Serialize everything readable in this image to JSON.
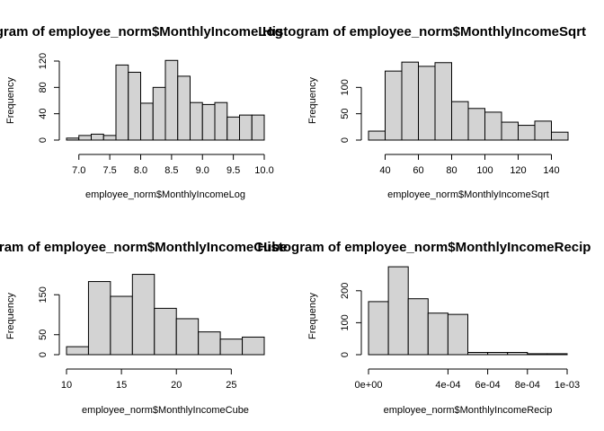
{
  "chart_data": [
    {
      "type": "bar",
      "title": "Histogram of employee_norm$MonthlyIncomeLog",
      "xlabel": "employee_norm$MonthlyIncomeLog",
      "ylabel": "Frequency",
      "bins": [
        [
          6.8,
          7.0
        ],
        [
          7.0,
          7.2
        ],
        [
          7.2,
          7.4
        ],
        [
          7.4,
          7.6
        ],
        [
          7.6,
          7.8
        ],
        [
          7.8,
          8.0
        ],
        [
          8.0,
          8.2
        ],
        [
          8.2,
          8.4
        ],
        [
          8.4,
          8.6
        ],
        [
          8.6,
          8.8
        ],
        [
          8.8,
          9.0
        ],
        [
          9.0,
          9.2
        ],
        [
          9.2,
          9.4
        ],
        [
          9.4,
          9.6
        ],
        [
          9.6,
          9.8
        ],
        [
          9.8,
          10.0
        ]
      ],
      "values": [
        3,
        7,
        9,
        7,
        114,
        103,
        56,
        80,
        121,
        97,
        57,
        54,
        57,
        35,
        38,
        38
      ],
      "xlim": [
        6.8,
        10.0
      ],
      "ylim": [
        0,
        120
      ],
      "xticks": [
        7.0,
        7.5,
        8.0,
        8.5,
        9.0,
        9.5,
        10.0
      ],
      "xtick_labels": [
        "7.0",
        "7.5",
        "8.0",
        "8.5",
        "9.0",
        "9.5",
        "10.0"
      ],
      "yticks": [
        0,
        40,
        80,
        120
      ],
      "ytick_labels": [
        "0",
        "40",
        "80",
        "120"
      ],
      "grid": false,
      "fill": "#d3d3d3"
    },
    {
      "type": "bar",
      "title": "Histogram of employee_norm$MonthlyIncomeSqrt",
      "xlabel": "employee_norm$MonthlyIncomeSqrt",
      "ylabel": "Frequency",
      "bins": [
        [
          30,
          40
        ],
        [
          40,
          50
        ],
        [
          50,
          60
        ],
        [
          60,
          70
        ],
        [
          70,
          80
        ],
        [
          80,
          90
        ],
        [
          90,
          100
        ],
        [
          100,
          110
        ],
        [
          110,
          120
        ],
        [
          120,
          130
        ],
        [
          130,
          140
        ],
        [
          140,
          150
        ]
      ],
      "values": [
        17,
        131,
        148,
        140,
        147,
        73,
        60,
        53,
        34,
        28,
        36,
        15
      ],
      "xlim": [
        30,
        150
      ],
      "ylim": [
        0,
        150
      ],
      "xticks": [
        40,
        60,
        80,
        100,
        120,
        140
      ],
      "xtick_labels": [
        "40",
        "60",
        "80",
        "100",
        "120",
        "140"
      ],
      "yticks": [
        0,
        50,
        100
      ],
      "ytick_labels": [
        "0",
        "50",
        "100"
      ],
      "grid": false,
      "fill": "#d3d3d3"
    },
    {
      "type": "bar",
      "title": "Histogram of employee_norm$MonthlyIncomeCube",
      "xlabel": "employee_norm$MonthlyIncomeCube",
      "ylabel": "Frequency",
      "bins": [
        [
          10,
          12
        ],
        [
          12,
          14
        ],
        [
          14,
          16
        ],
        [
          16,
          18
        ],
        [
          18,
          20
        ],
        [
          20,
          22
        ],
        [
          22,
          24
        ],
        [
          24,
          26
        ],
        [
          26,
          28
        ]
      ],
      "values": [
        20,
        183,
        146,
        201,
        116,
        90,
        57,
        39,
        44
      ],
      "xlim": [
        10,
        28
      ],
      "ylim": [
        0,
        200
      ],
      "xticks": [
        10,
        15,
        20,
        25
      ],
      "xtick_labels": [
        "10",
        "15",
        "20",
        "25"
      ],
      "yticks": [
        0,
        50,
        150
      ],
      "ytick_labels": [
        "0",
        "50",
        "150"
      ],
      "grid": false,
      "fill": "#d3d3d3"
    },
    {
      "type": "bar",
      "title": "Histogram of employee_norm$MonthlyIncomeRecip",
      "xlabel": "employee_norm$MonthlyIncomeRecip",
      "ylabel": "Frequency",
      "bins": [
        [
          0.0,
          0.0001
        ],
        [
          0.0001,
          0.0002
        ],
        [
          0.0002,
          0.0003
        ],
        [
          0.0003,
          0.0004
        ],
        [
          0.0004,
          0.0005
        ],
        [
          0.0005,
          0.0006
        ],
        [
          0.0006,
          0.0007
        ],
        [
          0.0007,
          0.0008
        ],
        [
          0.0008,
          0.0009
        ],
        [
          0.0009,
          0.001
        ]
      ],
      "values": [
        166,
        275,
        175,
        130,
        126,
        7,
        7,
        7,
        3,
        3
      ],
      "xlim": [
        0.0,
        0.001
      ],
      "ylim": [
        0,
        250
      ],
      "xticks": [
        0.0,
        0.0004,
        0.0006,
        0.0008,
        0.001
      ],
      "xtick_labels": [
        "0e+00",
        "4e-04",
        "6e-04",
        "8e-04",
        "1e-03"
      ],
      "yticks": [
        0,
        100,
        200
      ],
      "ytick_labels": [
        "0",
        "100",
        "200"
      ],
      "grid": false,
      "fill": "#d3d3d3"
    }
  ]
}
